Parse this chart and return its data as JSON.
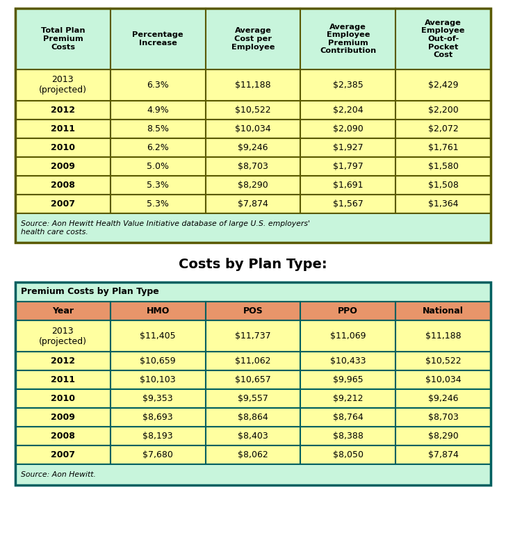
{
  "table1": {
    "headers": [
      "Total Plan\nPremium\nCosts",
      "Percentage\nIncrease",
      "Average\nCost per\nEmployee",
      "Average\nEmployee\nPremium\nContribution",
      "Average\nEmployee\nOut-of-\nPocket\nCost"
    ],
    "rows": [
      [
        "2013\n(projected)",
        "6.3%",
        "$11,188",
        "$2,385",
        "$2,429"
      ],
      [
        "2012",
        "4.9%",
        "$10,522",
        "$2,204",
        "$2,200"
      ],
      [
        "2011",
        "8.5%",
        "$10,034",
        "$2,090",
        "$2,072"
      ],
      [
        "2010",
        "6.2%",
        "$9,246",
        "$1,927",
        "$1,761"
      ],
      [
        "2009",
        "5.0%",
        "$8,703",
        "$1,797",
        "$1,580"
      ],
      [
        "2008",
        "5.3%",
        "$8,290",
        "$1,691",
        "$1,508"
      ],
      [
        "2007",
        "5.3%",
        "$7,874",
        "$1,567",
        "$1,364"
      ]
    ],
    "source": "Source: Aon Hewitt Health Value Initiative database of large U.S. employers'\nhealth care costs.",
    "header_bg": "#c8f5dc",
    "row_bg": "#ffffa0",
    "border_color": "#5a5a00",
    "header_text_color": "#000000",
    "data_text_color": "#000000"
  },
  "section_title": "Costs by Plan Type:",
  "table2": {
    "title_row": "Premium Costs by Plan Type",
    "headers": [
      "Year",
      "HMO",
      "POS",
      "PPO",
      "National"
    ],
    "rows": [
      [
        "2013\n(projected)",
        "$11,405",
        "$11,737",
        "$11,069",
        "$11,188"
      ],
      [
        "2012",
        "$10,659",
        "$11,062",
        "$10,433",
        "$10,522"
      ],
      [
        "2011",
        "$10,103",
        "$10,657",
        "$9,965",
        "$10,034"
      ],
      [
        "2010",
        "$9,353",
        "$9,557",
        "$9,212",
        "$9,246"
      ],
      [
        "2009",
        "$8,693",
        "$8,864",
        "$8,764",
        "$8,703"
      ],
      [
        "2008",
        "$8,193",
        "$8,403",
        "$8,388",
        "$8,290"
      ],
      [
        "2007",
        "$7,680",
        "$8,062",
        "$8,050",
        "$7,874"
      ]
    ],
    "source": "Source: Aon Hewitt.",
    "title_bg": "#c8f5dc",
    "header_bg": "#e8956a",
    "row_bg": "#ffffa0",
    "border_color": "#006060",
    "header_text_color": "#000000",
    "data_text_color": "#000000"
  },
  "background_color": "#ffffff",
  "fig_width": 7.28,
  "fig_height": 7.77
}
